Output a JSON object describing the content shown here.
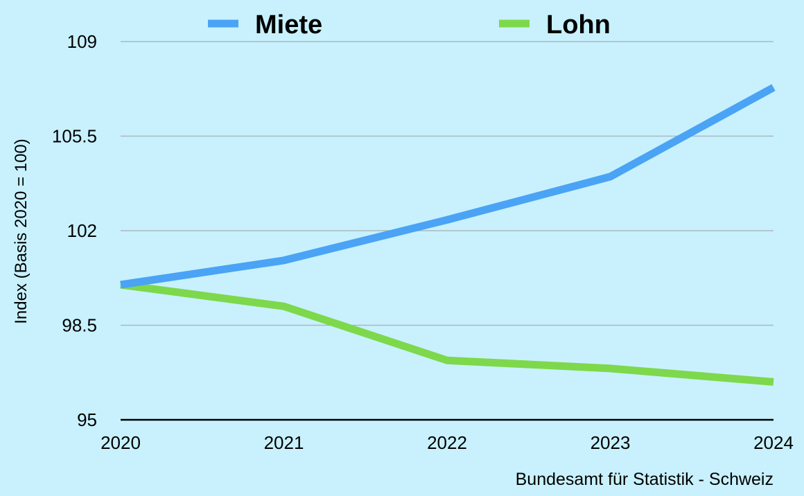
{
  "chart_data": {
    "type": "line",
    "x": [
      "2020",
      "2021",
      "2022",
      "2023",
      "2024"
    ],
    "series": [
      {
        "name": "Miete",
        "color": "#4aa3f5",
        "values": [
          100,
          100.9,
          102.4,
          104.0,
          107.3
        ]
      },
      {
        "name": "Lohn",
        "color": "#7ed84c",
        "values": [
          100,
          99.2,
          97.2,
          96.9,
          96.4
        ]
      }
    ],
    "ylim": [
      95,
      109
    ],
    "yticks": [
      "95",
      "98.5",
      "102",
      "105.5",
      "109"
    ],
    "ylabel": "Index (Basis 2020 = 100)",
    "xlabel": "",
    "source": "Bundesamt für Statistik - Schweiz",
    "legend_position": "top",
    "grid": true
  }
}
